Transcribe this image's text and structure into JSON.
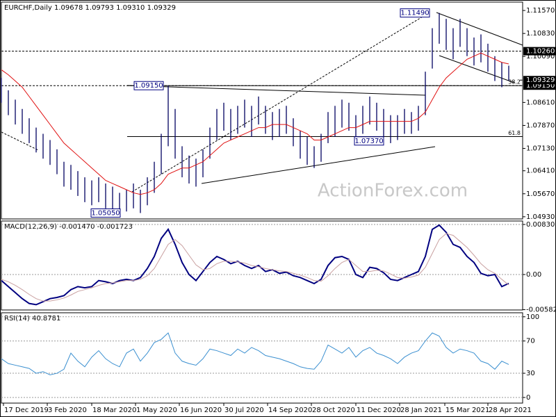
{
  "chart_data": [
    {
      "type": "ohlc",
      "title": "EURCHF,Daily 1.09678 1.09793 1.09310 1.09329",
      "watermark": "ActionForex.com",
      "color": "#000060",
      "high": [
        1.094,
        1.09,
        1.087,
        1.084,
        1.081,
        1.078,
        1.076,
        1.074,
        1.071,
        1.067,
        1.066,
        1.064,
        1.062,
        1.061,
        1.062,
        1.06,
        1.059,
        1.057,
        1.058,
        1.06,
        1.058,
        1.062,
        1.067,
        1.076,
        1.0915,
        1.084,
        1.072,
        1.069,
        1.068,
        1.071,
        1.078,
        1.084,
        1.086,
        1.084,
        1.085,
        1.087,
        1.085,
        1.088,
        1.085,
        1.083,
        1.084,
        1.085,
        1.081,
        1.077,
        1.075,
        1.072,
        1.076,
        1.083,
        1.085,
        1.087,
        1.086,
        1.082,
        1.085,
        1.088,
        1.086,
        1.084,
        1.082,
        1.082,
        1.084,
        1.083,
        1.085,
        1.096,
        1.11,
        1.1149,
        1.113,
        1.11,
        1.113,
        1.11,
        1.107,
        1.108,
        1.105,
        1.101,
        1.099,
        1.09793
      ],
      "low": [
        1.086,
        1.082,
        1.079,
        1.076,
        1.073,
        1.07,
        1.068,
        1.066,
        1.063,
        1.059,
        1.058,
        1.056,
        1.054,
        1.053,
        1.054,
        1.052,
        1.051,
        1.0505,
        1.051,
        1.052,
        1.0505,
        1.053,
        1.057,
        1.063,
        1.072,
        1.068,
        1.062,
        1.06,
        1.059,
        1.062,
        1.068,
        1.074,
        1.077,
        1.074,
        1.076,
        1.078,
        1.075,
        1.079,
        1.076,
        1.074,
        1.075,
        1.076,
        1.072,
        1.068,
        1.066,
        1.065,
        1.067,
        1.073,
        1.075,
        1.078,
        1.077,
        1.0737,
        1.076,
        1.079,
        1.077,
        1.075,
        1.073,
        1.074,
        1.076,
        1.076,
        1.077,
        1.082,
        1.097,
        1.105,
        1.103,
        1.1,
        1.104,
        1.101,
        1.098,
        1.099,
        1.096,
        1.093,
        1.091,
        1.0931
      ],
      "ma": {
        "color": "#e01010",
        "values": [
          1.0966,
          1.095,
          1.093,
          1.091,
          1.088,
          1.085,
          1.082,
          1.079,
          1.076,
          1.073,
          1.071,
          1.069,
          1.067,
          1.065,
          1.063,
          1.061,
          1.06,
          1.059,
          1.058,
          1.057,
          1.0565,
          1.057,
          1.058,
          1.06,
          1.063,
          1.064,
          1.065,
          1.065,
          1.066,
          1.067,
          1.069,
          1.071,
          1.073,
          1.074,
          1.075,
          1.076,
          1.077,
          1.078,
          1.078,
          1.079,
          1.079,
          1.079,
          1.078,
          1.077,
          1.076,
          1.074,
          1.074,
          1.075,
          1.076,
          1.077,
          1.078,
          1.078,
          1.079,
          1.08,
          1.08,
          1.08,
          1.08,
          1.08,
          1.08,
          1.08,
          1.081,
          1.083,
          1.087,
          1.091,
          1.094,
          1.096,
          1.098,
          1.1,
          1.101,
          1.102,
          1.101,
          1.1,
          1.099,
          1.0985
        ]
      },
      "xlim": [
        0,
        75
      ],
      "xticks": [
        {
          "value": 0.3,
          "label": "17 Dec 2019"
        },
        {
          "value": 6.6,
          "label": "3 Feb 2020"
        },
        {
          "value": 13,
          "label": "18 Mar 2020"
        },
        {
          "value": 19.3,
          "label": "1 May 2020"
        },
        {
          "value": 25.6,
          "label": "16 Jun 2020"
        },
        {
          "value": 32,
          "label": "30 Jul 2020"
        },
        {
          "value": 38.3,
          "label": "14 Sep 2020"
        },
        {
          "value": 44.6,
          "label": "28 Oct 2020"
        },
        {
          "value": 51,
          "label": "11 Dec 2020"
        },
        {
          "value": 57.3,
          "label": "28 Jan 2021"
        },
        {
          "value": 63.8,
          "label": "15 Mar 2021"
        },
        {
          "value": 70,
          "label": "28 Apr 2021"
        }
      ],
      "ylim": [
        1.0486,
        1.1184
      ],
      "yticks": [
        {
          "value": 1.1157,
          "label": "1.11570"
        },
        {
          "value": 1.1083,
          "label": "1.10830"
        },
        {
          "value": 1.1009,
          "label": "1.10090"
        },
        {
          "value": 1.0861,
          "label": "1.08610"
        },
        {
          "value": 1.0787,
          "label": "1.07870"
        },
        {
          "value": 1.0713,
          "label": "1.07130"
        },
        {
          "value": 1.0641,
          "label": "1.06410"
        },
        {
          "value": 1.0567,
          "label": "1.05670"
        },
        {
          "value": 1.0493,
          "label": "1.04930"
        }
      ],
      "levels": [
        {
          "value": 1.1026,
          "label": "1.10260"
        },
        {
          "value": 1.0915,
          "label": "1.09150"
        }
      ],
      "last_price": {
        "value": 1.09329,
        "label": "1.09329"
      },
      "fib": [
        {
          "value": 1.0751,
          "label": "61.8"
        },
        {
          "value": 1.0915,
          "label": "38.2"
        }
      ],
      "annotations": [
        {
          "x": 59.5,
          "value": 1.1149,
          "label": "1.11490"
        },
        {
          "x": 21.2,
          "value": 1.0915,
          "label": "1.09150"
        },
        {
          "x": 52.9,
          "value": 1.0737,
          "label": "1.07370"
        },
        {
          "x": 15,
          "value": 1.0505,
          "label": "1.05050"
        }
      ],
      "grid": false
    },
    {
      "type": "line",
      "title": "MACD(12,26,9) -0.001470 -0.001723",
      "series": [
        {
          "color": "#000080",
          "values": [
            -0.001,
            -0.002,
            -0.003,
            -0.004,
            -0.0048,
            -0.005,
            -0.0045,
            -0.004,
            -0.0038,
            -0.0035,
            -0.0025,
            -0.002,
            -0.0022,
            -0.002,
            -0.001,
            -0.0012,
            -0.0015,
            -0.001,
            -0.0008,
            -0.001,
            -0.0005,
            0.001,
            0.003,
            0.006,
            0.0075,
            0.005,
            0.002,
            0,
            -0.001,
            0.0005,
            0.002,
            0.003,
            0.0025,
            0.0018,
            0.0022,
            0.0015,
            0.001,
            0.0015,
            0.0005,
            0.0008,
            0.0002,
            0.0004,
            -0.0002,
            -0.0005,
            -0.001,
            -0.0015,
            -0.0008,
            0.0015,
            0.0028,
            0.003,
            0.0025,
            0,
            -0.0005,
            0.0012,
            0.001,
            0.0003,
            -0.0008,
            -0.001,
            -0.0005,
            0,
            0.0005,
            0.003,
            0.0075,
            0.0082,
            0.007,
            0.005,
            0.0045,
            0.003,
            0.002,
            0.0002,
            -0.0002,
            0,
            -0.002,
            -0.00147
          ]
        },
        {
          "color": "#c9a0a0",
          "values": [
            -0.0008,
            -0.0012,
            -0.0018,
            -0.0025,
            -0.0033,
            -0.004,
            -0.0044,
            -0.0044,
            -0.0042,
            -0.0039,
            -0.0034,
            -0.0028,
            -0.0025,
            -0.0022,
            -0.0018,
            -0.0015,
            -0.0014,
            -0.0012,
            -0.001,
            -0.001,
            -0.0008,
            -0.0002,
            0.001,
            0.003,
            0.005,
            0.0058,
            0.0048,
            0.0032,
            0.0016,
            0.0008,
            0.001,
            0.0018,
            0.0022,
            0.0022,
            0.0021,
            0.0019,
            0.0015,
            0.0013,
            0.001,
            0.0008,
            0.0006,
            0.0005,
            0.0002,
            -0.0001,
            -0.0005,
            -0.001,
            -0.0011,
            -0.0002,
            0.001,
            0.002,
            0.0025,
            0.0015,
            0.0005,
            0.0005,
            0.0007,
            0.0006,
            0.0001,
            -0.0005,
            -0.0006,
            -0.0004,
            -0.0001,
            0.0012,
            0.0035,
            0.0058,
            0.0068,
            0.0065,
            0.0055,
            0.0045,
            0.0032,
            0.0018,
            0.0008,
            0.0002,
            -0.0008,
            -0.001723
          ]
        }
      ],
      "ylim": [
        -0.00588,
        0.00888
      ],
      "yticks": [
        0.008307,
        {
          "value": 0,
          "label": "0.00"
        },
        -0.005828
      ],
      "grid": true
    },
    {
      "type": "line",
      "title": "RSI(14) 40.8781",
      "series": [
        {
          "color": "#3a8fd0",
          "values": [
            48,
            42,
            40,
            38,
            36,
            30,
            32,
            28,
            30,
            35,
            55,
            45,
            38,
            50,
            58,
            48,
            42,
            38,
            55,
            60,
            45,
            55,
            68,
            72,
            80,
            55,
            45,
            42,
            40,
            48,
            60,
            58,
            55,
            52,
            60,
            55,
            62,
            58,
            52,
            50,
            48,
            45,
            42,
            38,
            36,
            35,
            45,
            65,
            60,
            55,
            62,
            50,
            58,
            62,
            55,
            52,
            48,
            42,
            50,
            55,
            58,
            70,
            80,
            76,
            62,
            55,
            60,
            58,
            55,
            45,
            42,
            35,
            45,
            40.8781
          ]
        }
      ],
      "ylim": [
        -7,
        105
      ],
      "yticks": [
        100,
        70,
        30,
        0
      ],
      "grid": true
    }
  ]
}
